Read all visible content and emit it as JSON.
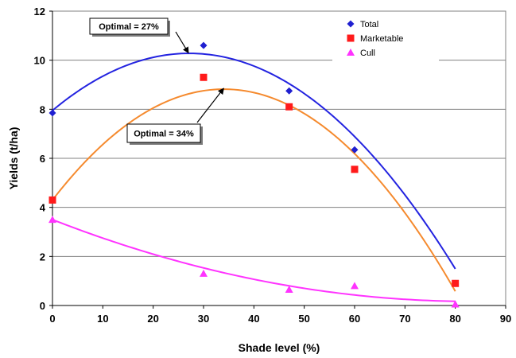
{
  "chart_data": {
    "type": "scatter",
    "xlabel": "Shade level (%)",
    "ylabel": "Yields (t/ha)",
    "xlim": [
      0,
      90
    ],
    "ylim": [
      0,
      12
    ],
    "xticks": [
      0,
      10,
      20,
      30,
      40,
      50,
      60,
      70,
      80,
      90
    ],
    "yticks": [
      0,
      2,
      4,
      6,
      8,
      10,
      12
    ],
    "grid": "horizontal",
    "legend_position": "top-right",
    "series": [
      {
        "name": "Total",
        "color": "#1f1fd0",
        "marker": "diamond",
        "x": [
          0,
          30,
          47,
          60,
          80
        ],
        "y": [
          7.85,
          10.6,
          8.75,
          6.35,
          0.9
        ],
        "trend_color": "#2323e0",
        "trend_coefficients": [
          7.95,
          0.1713,
          -0.00315
        ]
      },
      {
        "name": "Marketable",
        "color": "#ff1a1a",
        "marker": "square",
        "x": [
          0,
          30,
          47,
          60,
          80
        ],
        "y": [
          4.3,
          9.3,
          8.1,
          5.55,
          0.9
        ],
        "trend_color": "#f58a2e",
        "trend_coefficients": [
          4.3,
          0.2655,
          -0.0039
        ]
      },
      {
        "name": "Cull",
        "color": "#ff33ff",
        "marker": "triangle",
        "x": [
          0,
          30,
          47,
          60,
          80
        ],
        "y": [
          3.5,
          1.3,
          0.65,
          0.8,
          0.05
        ],
        "trend_color": "#ff33ff",
        "trend_coefficients": [
          3.5,
          -0.08,
          0.00048
        ]
      }
    ],
    "annotations": [
      {
        "text": "Optimal = 27%",
        "target_x": 27,
        "target_y": 10.3
      },
      {
        "text": "Optimal = 34%",
        "target_x": 34,
        "target_y": 8.85
      }
    ]
  }
}
